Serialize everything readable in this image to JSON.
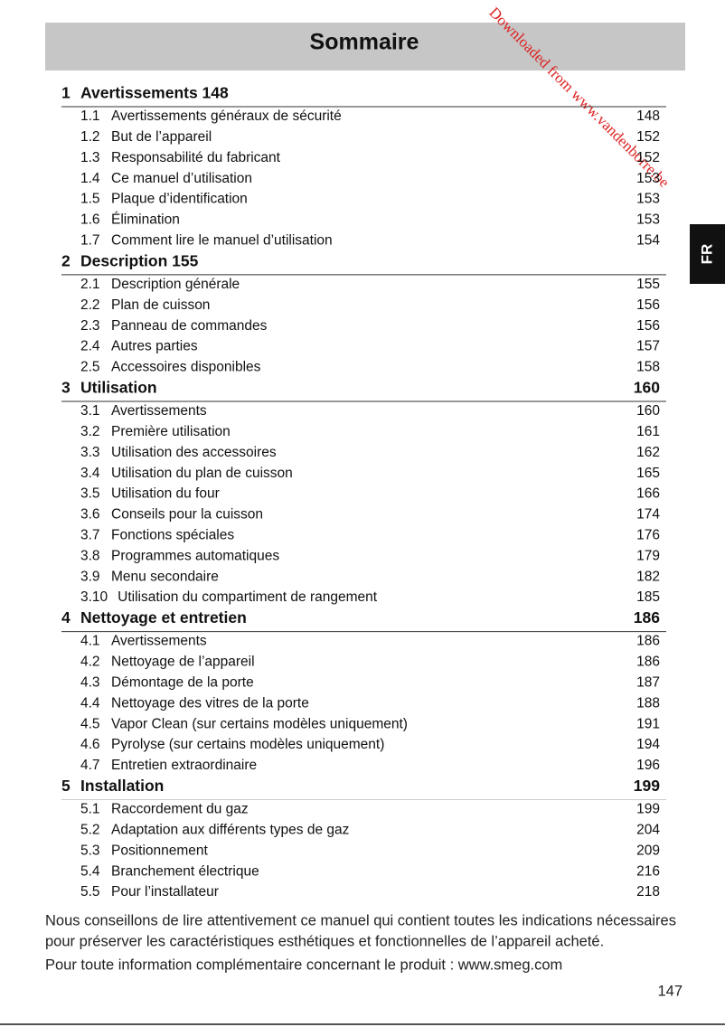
{
  "header": {
    "title": "Sommaire"
  },
  "tab": "FR",
  "watermark": "Downloaded from www.vandenborre.be",
  "sections": [
    {
      "number": "1",
      "title": "Avertissements 148",
      "items": [
        {
          "number": "1.1",
          "title": "Avertissements généraux de sécurité",
          "page": "148"
        },
        {
          "number": "1.2",
          "title": "But de l’appareil",
          "page": "152"
        },
        {
          "number": "1.3",
          "title": "Responsabilité du fabricant",
          "page": "152"
        },
        {
          "number": "1.4",
          "title": "Ce manuel d’utilisation",
          "page": "153"
        },
        {
          "number": "1.5",
          "title": "Plaque d’identification",
          "page": "153"
        },
        {
          "number": "1.6",
          "title": "Élimination",
          "page": "153"
        },
        {
          "number": "1.7",
          "title": "Comment lire le manuel d’utilisation",
          "page": "154"
        }
      ]
    },
    {
      "number": "2",
      "title": "Description 155",
      "items": [
        {
          "number": "2.1",
          "title": "Description générale",
          "page": "155"
        },
        {
          "number": "2.2",
          "title": "Plan de cuisson",
          "page": "156"
        },
        {
          "number": "2.3",
          "title": "Panneau de commandes",
          "page": "156"
        },
        {
          "number": "2.4",
          "title": "Autres parties",
          "page": "157"
        },
        {
          "number": "2.5",
          "title": "Accessoires disponibles",
          "page": "158"
        }
      ]
    },
    {
      "number": "3",
      "title": "Utilisation",
      "page": "160",
      "items": [
        {
          "number": "3.1",
          "title": "Avertissements",
          "page": "160"
        },
        {
          "number": "3.2",
          "title": "Première utilisation",
          "page": "161"
        },
        {
          "number": "3.3",
          "title": "Utilisation des accessoires",
          "page": "162"
        },
        {
          "number": "3.4",
          "title": "Utilisation du plan de cuisson",
          "page": "165"
        },
        {
          "number": "3.5",
          "title": "Utilisation du four",
          "page": "166"
        },
        {
          "number": "3.6",
          "title": "Conseils pour la cuisson",
          "page": "174"
        },
        {
          "number": "3.7",
          "title": "Fonctions spéciales",
          "page": "176"
        },
        {
          "number": "3.8",
          "title": "Programmes automatiques",
          "page": "179"
        },
        {
          "number": "3.9",
          "title": "Menu secondaire",
          "page": "182"
        },
        {
          "number": "3.10",
          "title": "Utilisation du compartiment de rangement",
          "page": "185"
        }
      ]
    },
    {
      "number": "4",
      "title": "Nettoyage et entretien",
      "page": "186",
      "items": [
        {
          "number": "4.1",
          "title": "Avertissements",
          "page": "186"
        },
        {
          "number": "4.2",
          "title": "Nettoyage de l’appareil",
          "page": "186"
        },
        {
          "number": "4.3",
          "title": "Démontage de la porte",
          "page": "187"
        },
        {
          "number": "4.4",
          "title": "Nettoyage des vitres de la porte",
          "page": "188"
        },
        {
          "number": "4.5",
          "title": "Vapor Clean (sur certains modèles uniquement)",
          "page": "191"
        },
        {
          "number": "4.6",
          "title": "Pyrolyse (sur certains modèles uniquement)",
          "page": "194"
        },
        {
          "number": "4.7",
          "title": "Entretien extraordinaire",
          "page": "196"
        }
      ]
    },
    {
      "number": "5",
      "title": "Installation",
      "page": "199",
      "items": [
        {
          "number": "5.1",
          "title": "Raccordement du gaz",
          "page": "199"
        },
        {
          "number": "5.2",
          "title": "Adaptation aux différents types de gaz",
          "page": "204"
        },
        {
          "number": "5.3",
          "title": "Positionnement",
          "page": "209"
        },
        {
          "number": "5.4",
          "title": "Branchement électrique",
          "page": "216"
        },
        {
          "number": "5.5",
          "title": "Pour l’installateur",
          "page": "218"
        }
      ]
    }
  ],
  "footer": {
    "lines": [
      "Nous conseillons de lire attentivement ce manuel qui contient toutes les indications nécessaires",
      "pour préserver les caractéristiques esthétiques et fonctionnelles de l’appareil acheté.",
      "Pour toute information complémentaire concernant le produit : www.smeg.com"
    ],
    "page_number": "147"
  }
}
